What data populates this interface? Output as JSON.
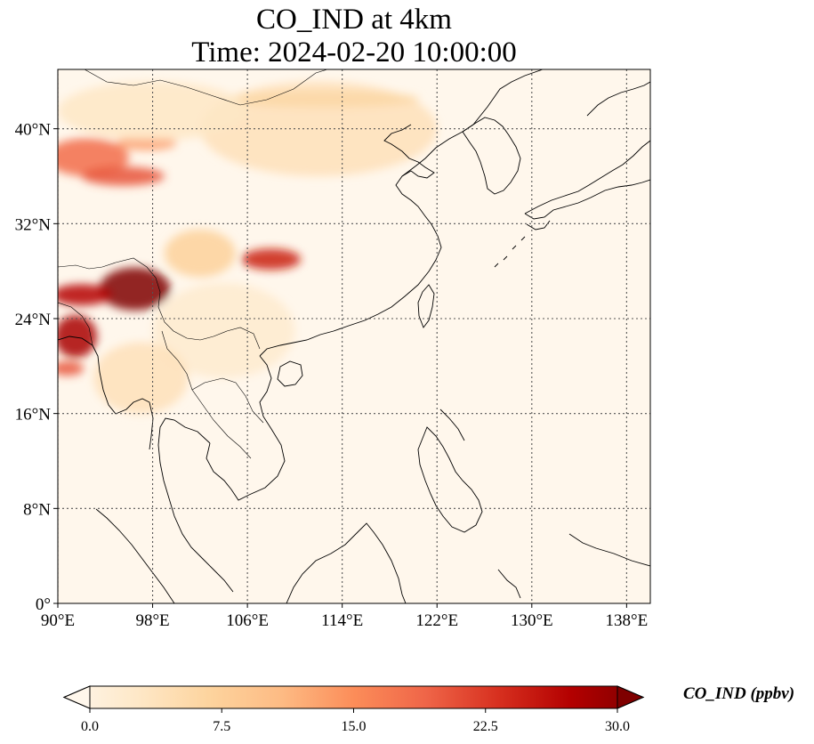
{
  "title_line1": "CO_IND at 4km",
  "title_line2": "Time: 2024-02-20 10:00:00",
  "map": {
    "extent": {
      "lon_min": 90,
      "lon_max": 140,
      "lat_min": 0,
      "lat_max": 45
    },
    "lon_ticks": [
      {
        "value": 90,
        "label": "90°E"
      },
      {
        "value": 98,
        "label": "98°E"
      },
      {
        "value": 106,
        "label": "106°E"
      },
      {
        "value": 114,
        "label": "114°E"
      },
      {
        "value": 122,
        "label": "122°E"
      },
      {
        "value": 130,
        "label": "130°E"
      },
      {
        "value": 138,
        "label": "138°E"
      }
    ],
    "lat_ticks": [
      {
        "value": 0,
        "label": "0°"
      },
      {
        "value": 8,
        "label": "8°N"
      },
      {
        "value": 16,
        "label": "16°N"
      },
      {
        "value": 24,
        "label": "24°N"
      },
      {
        "value": 32,
        "label": "32°N"
      },
      {
        "value": 40,
        "label": "40°N"
      }
    ],
    "gridlines": true,
    "plumes": [
      {
        "lon": 92.5,
        "lat": 37.6,
        "rlon": 3.5,
        "rlat": 1.6,
        "value": 18
      },
      {
        "lon": 95.5,
        "lat": 36.0,
        "rlon": 3.5,
        "rlat": 0.8,
        "value": 20
      },
      {
        "lon": 97.5,
        "lat": 38.8,
        "rlon": 2.5,
        "rlat": 0.6,
        "value": 14
      },
      {
        "lon": 96.5,
        "lat": 26.5,
        "rlon": 3.0,
        "rlat": 1.8,
        "value": 30
      },
      {
        "lon": 92.0,
        "lat": 26.0,
        "rlon": 2.5,
        "rlat": 0.9,
        "value": 26
      },
      {
        "lon": 91.5,
        "lat": 22.5,
        "rlon": 1.8,
        "rlat": 1.8,
        "value": 27
      },
      {
        "lon": 90.8,
        "lat": 19.8,
        "rlon": 1.4,
        "rlat": 0.6,
        "value": 20
      },
      {
        "lon": 108.0,
        "lat": 29.0,
        "rlon": 2.5,
        "rlat": 0.9,
        "value": 24
      },
      {
        "lon": 102.0,
        "lat": 29.5,
        "rlon": 3.0,
        "rlat": 2.0,
        "value": 8
      },
      {
        "lon": 112.0,
        "lat": 40.0,
        "rlon": 10.0,
        "rlat": 4.0,
        "value": 5
      },
      {
        "lon": 112.5,
        "lat": 42.5,
        "rlon": 8.0,
        "rlat": 0.7,
        "value": 7
      },
      {
        "lon": 98.0,
        "lat": 41.5,
        "rlon": 8.0,
        "rlat": 2.5,
        "value": 4
      },
      {
        "lon": 104.0,
        "lat": 23.0,
        "rlon": 6.0,
        "rlat": 4.0,
        "value": 3
      },
      {
        "lon": 97.0,
        "lat": 19.0,
        "rlon": 4.0,
        "rlat": 3.0,
        "value": 5
      }
    ]
  },
  "colorbar": {
    "title": "CO_IND (ppbv)",
    "min": 0.0,
    "max": 30.0,
    "extend": "both",
    "cmap": "OrRd",
    "colors": [
      "#fff7ec",
      "#fee8c8",
      "#fdd49e",
      "#fdbb84",
      "#fc8d59",
      "#ef6548",
      "#d7301f",
      "#b30000",
      "#7f0000"
    ],
    "ticks": [
      {
        "value": 0.0,
        "label": "0.0"
      },
      {
        "value": 7.5,
        "label": "7.5"
      },
      {
        "value": 15.0,
        "label": "15.0"
      },
      {
        "value": 22.5,
        "label": "22.5"
      },
      {
        "value": 30.0,
        "label": "30.0"
      }
    ]
  }
}
